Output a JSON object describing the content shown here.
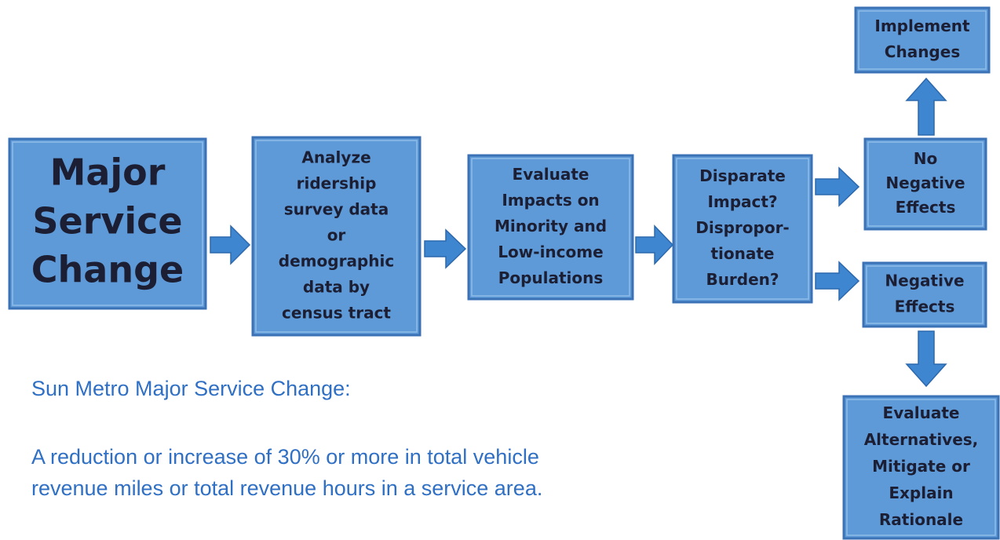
{
  "nodes": [
    {
      "lines": [
        "Major",
        "Service",
        "Change"
      ]
    },
    {
      "lines": [
        "Analyze",
        "ridership",
        "survey data",
        "or",
        "demographic",
        "data by",
        "census tract"
      ]
    },
    {
      "lines": [
        "Evaluate",
        "Impacts on",
        "Minority and",
        "Low-income",
        "Populations"
      ]
    },
    {
      "lines": [
        "Disparate",
        "Impact?",
        "Dispropor-",
        "tionate",
        "Burden?"
      ]
    },
    {
      "lines": [
        "No",
        "Negative",
        "Effects"
      ]
    },
    {
      "lines": [
        "Implement",
        "Changes"
      ]
    },
    {
      "lines": [
        "Negative",
        "Effects"
      ]
    },
    {
      "lines": [
        "Evaluate",
        "Alternatives,",
        "Mitigate or",
        "Explain",
        "Rationale"
      ]
    }
  ],
  "description": {
    "heading": "Sun Metro Major Service Change:",
    "lines": [
      "A reduction or increase of 30% or more in total vehicle",
      "revenue miles or total revenue hours in a service area."
    ]
  }
}
